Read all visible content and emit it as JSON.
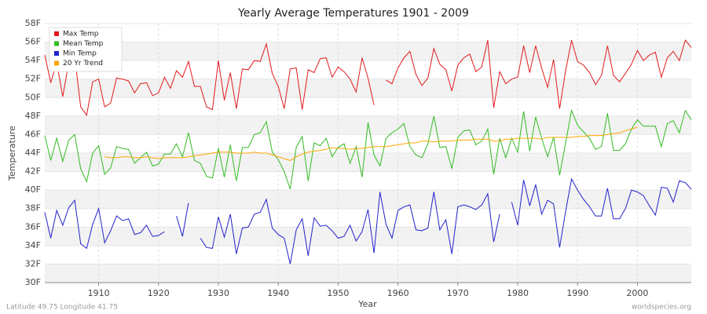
{
  "chart_data": {
    "type": "line",
    "title": "Yearly Average Temperatures 1901 - 2009",
    "x_label": "Year",
    "y_label": "Temperature",
    "footer_left": "Latitude 49.75 Longitude 41.75",
    "footer_right": "worldspecies.org",
    "legend_position": "upper-left",
    "grid": true,
    "xlim": [
      1901,
      2009
    ],
    "xticks": [
      1910,
      1920,
      1930,
      1940,
      1950,
      1960,
      1970,
      1980,
      1990,
      2000
    ],
    "ylim": [
      30,
      58
    ],
    "yticks": [
      {
        "value": 30,
        "label": "30F"
      },
      {
        "value": 32,
        "label": "32F"
      },
      {
        "value": 34,
        "label": "34F"
      },
      {
        "value": 36,
        "label": "36F"
      },
      {
        "value": 38,
        "label": "38F"
      },
      {
        "value": 40,
        "label": "40F"
      },
      {
        "value": 42,
        "label": "42F"
      },
      {
        "value": 44,
        "label": "44F"
      },
      {
        "value": 46,
        "label": "46F"
      },
      {
        "value": 48,
        "label": "48F"
      },
      {
        "value": 50,
        "label": "50F"
      },
      {
        "value": 52,
        "label": "52F"
      },
      {
        "value": 54,
        "label": "54F"
      },
      {
        "value": 56,
        "label": "56F"
      },
      {
        "value": 58,
        "label": "58F"
      }
    ],
    "x": [
      1901,
      1902,
      1903,
      1904,
      1905,
      1906,
      1907,
      1908,
      1909,
      1910,
      1911,
      1912,
      1913,
      1914,
      1915,
      1916,
      1917,
      1918,
      1919,
      1920,
      1921,
      1922,
      1923,
      1924,
      1925,
      1926,
      1927,
      1928,
      1929,
      1930,
      1931,
      1932,
      1933,
      1934,
      1935,
      1936,
      1937,
      1938,
      1939,
      1940,
      1941,
      1942,
      1943,
      1944,
      1945,
      1946,
      1947,
      1948,
      1949,
      1950,
      1951,
      1952,
      1953,
      1954,
      1955,
      1956,
      1957,
      1958,
      1959,
      1960,
      1961,
      1962,
      1963,
      1964,
      1965,
      1966,
      1967,
      1968,
      1969,
      1970,
      1971,
      1972,
      1973,
      1974,
      1975,
      1976,
      1977,
      1978,
      1979,
      1980,
      1981,
      1982,
      1983,
      1984,
      1985,
      1986,
      1987,
      1988,
      1989,
      1990,
      1991,
      1992,
      1993,
      1994,
      1995,
      1996,
      1997,
      1998,
      1999,
      2000,
      2001,
      2002,
      2003,
      2004,
      2005,
      2006,
      2007,
      2008,
      2009
    ],
    "series": [
      {
        "name": "Max Temp",
        "color": "#e31a1c",
        "values": [
          54.6,
          51.6,
          53.8,
          50.1,
          53.8,
          54.4,
          49.0,
          48.1,
          51.7,
          52.0,
          49.0,
          49.4,
          52.1,
          52.0,
          51.8,
          50.5,
          51.5,
          51.6,
          50.2,
          50.5,
          52.2,
          51.0,
          52.9,
          52.2,
          53.9,
          51.2,
          51.2,
          49.0,
          48.7,
          54.0,
          49.7,
          52.7,
          48.8,
          53.1,
          53.0,
          54.0,
          53.9,
          55.8,
          52.6,
          51.2,
          48.8,
          53.1,
          53.2,
          48.7,
          53.0,
          52.7,
          54.2,
          54.3,
          52.2,
          53.3,
          52.8,
          52.0,
          50.6,
          54.3,
          52.1,
          49.2,
          null,
          51.9,
          51.5,
          53.2,
          54.3,
          55.0,
          52.5,
          51.3,
          52.1,
          55.3,
          53.6,
          53.0,
          50.7,
          53.5,
          54.3,
          54.7,
          52.8,
          53.3,
          56.2,
          48.9,
          52.8,
          51.5,
          52.0,
          52.2,
          55.6,
          52.7,
          55.6,
          53.2,
          51.1,
          54.1,
          48.8,
          52.9,
          56.2,
          53.9,
          53.5,
          52.7,
          51.4,
          52.4,
          55.6,
          52.4,
          51.7,
          52.6,
          53.6,
          55.1,
          54.0,
          54.6,
          54.9,
          52.2,
          54.3,
          55.0,
          54.0,
          56.2,
          55.4
        ]
      },
      {
        "name": "Mean Temp",
        "color": "#33bb22",
        "values": [
          45.9,
          43.2,
          45.6,
          43.1,
          45.4,
          46.0,
          42.3,
          40.9,
          44.0,
          44.8,
          41.7,
          42.4,
          44.7,
          44.5,
          44.4,
          42.9,
          43.5,
          44.1,
          42.6,
          42.8,
          43.9,
          43.9,
          45.0,
          43.6,
          46.2,
          43.2,
          42.9,
          41.5,
          41.3,
          44.5,
          41.4,
          44.9,
          41.0,
          44.6,
          44.6,
          46.0,
          46.2,
          47.4,
          44.1,
          43.3,
          42.0,
          40.1,
          44.6,
          45.8,
          41.0,
          45.1,
          44.8,
          45.6,
          43.6,
          44.6,
          45.0,
          42.9,
          44.7,
          41.4,
          47.3,
          43.8,
          42.6,
          45.6,
          46.2,
          46.6,
          47.2,
          44.7,
          43.8,
          43.5,
          45.0,
          48.0,
          44.6,
          44.7,
          42.3,
          45.7,
          46.4,
          46.5,
          44.9,
          45.3,
          46.6,
          41.7,
          45.6,
          43.5,
          45.6,
          44.1,
          48.5,
          44.2,
          47.9,
          45.6,
          43.6,
          45.7,
          41.6,
          45.1,
          48.6,
          47.0,
          46.3,
          45.6,
          44.4,
          44.7,
          48.3,
          44.3,
          44.3,
          45.0,
          46.6,
          47.6,
          46.9,
          46.9,
          46.9,
          44.7,
          47.2,
          47.5,
          46.2,
          48.6,
          47.6
        ]
      },
      {
        "name": "Min Temp",
        "color": "#2222cc",
        "values": [
          37.6,
          34.8,
          37.8,
          36.2,
          38.1,
          38.9,
          34.2,
          33.7,
          36.3,
          38.0,
          34.3,
          35.6,
          37.2,
          36.7,
          36.9,
          35.2,
          35.4,
          36.2,
          35.0,
          35.1,
          35.5,
          null,
          37.2,
          35.0,
          38.6,
          null,
          34.8,
          33.8,
          33.7,
          37.1,
          34.9,
          37.4,
          33.1,
          35.9,
          36.0,
          37.4,
          37.6,
          39.0,
          35.9,
          35.2,
          34.8,
          32.0,
          35.7,
          36.9,
          32.9,
          37.0,
          36.1,
          36.2,
          35.6,
          34.8,
          35.0,
          36.2,
          34.5,
          35.5,
          37.9,
          33.2,
          39.8,
          36.3,
          34.8,
          37.8,
          38.2,
          38.4,
          35.7,
          35.6,
          35.9,
          39.8,
          35.7,
          36.8,
          33.1,
          38.2,
          38.4,
          38.2,
          37.9,
          38.4,
          39.6,
          34.4,
          37.4,
          null,
          38.7,
          36.2,
          41.1,
          38.3,
          40.6,
          37.4,
          38.9,
          38.5,
          33.8,
          37.7,
          41.2,
          40.0,
          39.0,
          38.2,
          37.2,
          37.2,
          40.2,
          36.9,
          36.9,
          38.0,
          40.0,
          39.8,
          39.4,
          38.3,
          37.3,
          40.3,
          40.2,
          38.7,
          41.0,
          40.8,
          40.1
        ]
      },
      {
        "name": "20 Yr Trend",
        "color": "#ffa500",
        "values": [
          null,
          null,
          null,
          null,
          null,
          null,
          null,
          null,
          null,
          null,
          43.6,
          43.5,
          43.5,
          43.6,
          43.6,
          43.5,
          43.5,
          43.6,
          43.5,
          43.4,
          43.5,
          43.5,
          43.5,
          43.5,
          43.6,
          43.7,
          43.8,
          43.9,
          44.0,
          44.1,
          44.1,
          44.1,
          44.0,
          44.0,
          44.0,
          44.1,
          44.0,
          44.0,
          43.8,
          43.6,
          43.4,
          43.2,
          43.6,
          43.9,
          44.1,
          44.2,
          44.3,
          44.4,
          44.6,
          44.5,
          44.5,
          44.4,
          44.5,
          44.5,
          44.6,
          44.7,
          44.7,
          44.7,
          44.8,
          44.9,
          45.0,
          45.1,
          45.1,
          45.3,
          45.3,
          45.2,
          45.3,
          45.3,
          45.3,
          45.4,
          45.4,
          45.4,
          45.5,
          45.5,
          45.5,
          45.3,
          45.3,
          45.5,
          45.5,
          45.6,
          45.6,
          45.6,
          45.6,
          45.5,
          45.7,
          45.7,
          45.7,
          45.7,
          45.7,
          45.8,
          45.8,
          45.9,
          45.9,
          45.9,
          46.0,
          46.1,
          46.2,
          46.4,
          46.6,
          46.8,
          null,
          null,
          null,
          null,
          null,
          null,
          null,
          null,
          null
        ]
      }
    ]
  }
}
